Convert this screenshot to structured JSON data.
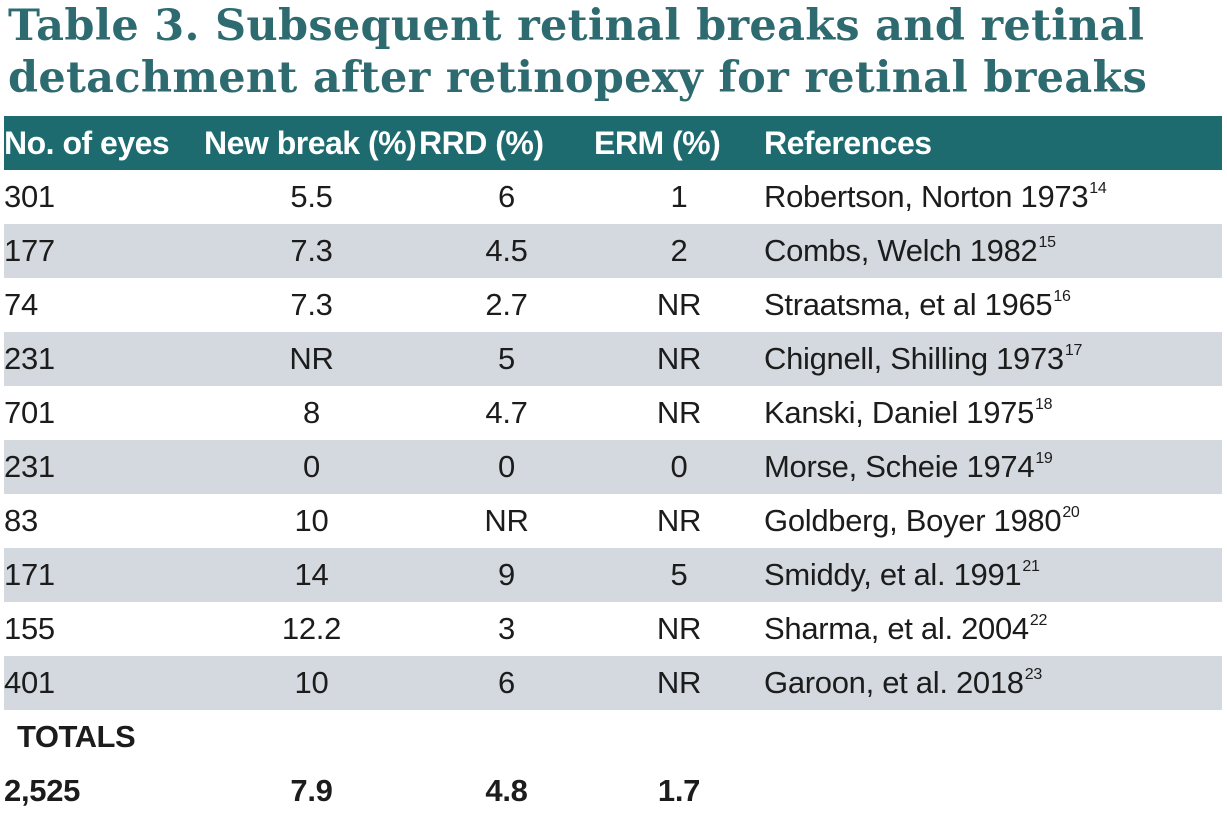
{
  "title": {
    "line1": "Table 3. Subsequent retinal breaks and retinal",
    "line2": "detachment after retinopexy for retinal breaks"
  },
  "colors": {
    "title": "#2e6b70",
    "header_bg": "#1d6a6f",
    "header_text": "#ffffff",
    "row_shade": "#d3d9de"
  },
  "headers": [
    "No. of eyes",
    "New break (%)",
    "RRD (%)",
    "ERM (%)",
    "References"
  ],
  "rows": [
    {
      "eyes": "301",
      "new_break": "5.5",
      "rrd": "6",
      "erm": "1",
      "ref": "Robertson, Norton 1973",
      "ref_num": "14"
    },
    {
      "eyes": "177",
      "new_break": "7.3",
      "rrd": "4.5",
      "erm": "2",
      "ref": "Combs, Welch 1982",
      "ref_num": "15"
    },
    {
      "eyes": "74",
      "new_break": "7.3",
      "rrd": "2.7",
      "erm": "NR",
      "ref": "Straatsma, et al 1965",
      "ref_num": "16"
    },
    {
      "eyes": "231",
      "new_break": "NR",
      "rrd": "5",
      "erm": "NR",
      "ref": "Chignell, Shilling 1973",
      "ref_num": "17"
    },
    {
      "eyes": "701",
      "new_break": "8",
      "rrd": "4.7",
      "erm": "NR",
      "ref": "Kanski, Daniel 1975",
      "ref_num": "18"
    },
    {
      "eyes": "231",
      "new_break": "0",
      "rrd": "0",
      "erm": "0",
      "ref": "Morse, Scheie 1974",
      "ref_num": "19"
    },
    {
      "eyes": "83",
      "new_break": "10",
      "rrd": "NR",
      "erm": "NR",
      "ref": "Goldberg, Boyer 1980",
      "ref_num": "20"
    },
    {
      "eyes": "171",
      "new_break": "14",
      "rrd": "9",
      "erm": "5",
      "ref": "Smiddy, et al. 1991",
      "ref_num": "21"
    },
    {
      "eyes": "155",
      "new_break": "12.2",
      "rrd": "3",
      "erm": "NR",
      "ref": "Sharma, et al. 2004",
      "ref_num": "22"
    },
    {
      "eyes": "401",
      "new_break": "10",
      "rrd": "6",
      "erm": "NR",
      "ref": "Garoon, et al. 2018",
      "ref_num": "23"
    }
  ],
  "totals": {
    "label": "TOTALS",
    "eyes": "2,525",
    "new_break": "7.9",
    "rrd": "4.8",
    "erm": "1.7"
  }
}
